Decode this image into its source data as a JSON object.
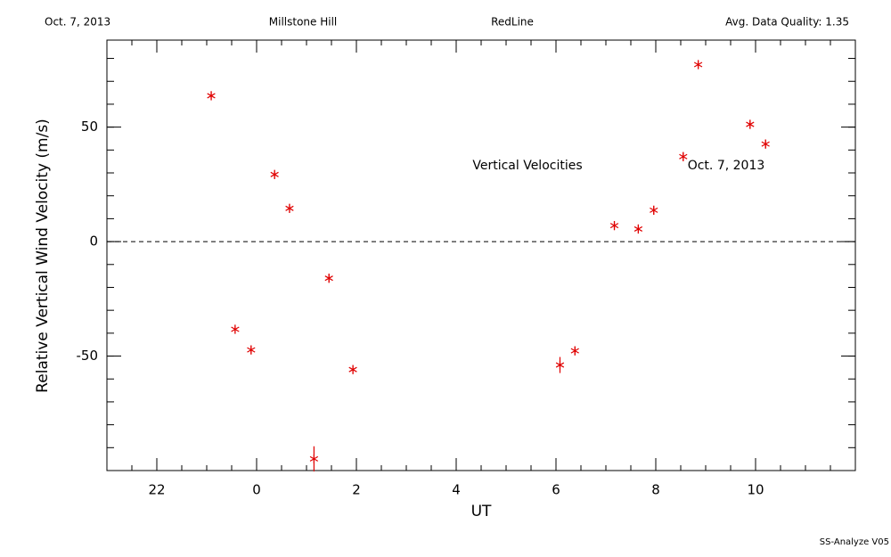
{
  "chart_data": {
    "type": "scatter",
    "header": [
      "Oct. 7, 2013",
      "Millstone Hill",
      "RedLine",
      "Avg. Data Quality: 1.35"
    ],
    "xlabel": "UT",
    "ylabel": "Relative Vertical Wind Velocity (m/s)",
    "annotations": [
      "Vertical Velocities",
      "Oct. 7, 2013"
    ],
    "footer": "SS-Analyze V05",
    "xlim": [
      -3,
      12
    ],
    "ylim": [
      -100,
      88
    ],
    "xticks": [
      {
        "value": -2,
        "label": "22"
      },
      0,
      2,
      4,
      6,
      8,
      10
    ],
    "yticks": [
      -50,
      0,
      50
    ],
    "xminor": 0.5,
    "yminor": 10,
    "zero_line": true,
    "series": [
      {
        "name": "Vertical Velocities",
        "color": "#e00000",
        "x": [
          -0.91,
          -0.43,
          -0.11,
          0.36,
          0.66,
          1.15,
          1.45,
          1.93,
          6.08,
          6.38,
          7.17,
          7.65,
          7.96,
          8.55,
          8.85,
          9.89,
          10.2
        ],
        "values": [
          63.7,
          -38.3,
          -47.3,
          29.3,
          14.5,
          -94.9,
          -16,
          -55.9,
          -53.9,
          -47.7,
          7,
          5.5,
          13.7,
          37.1,
          77.3,
          51.2,
          42.6
        ],
        "errors": [
          2,
          2,
          2,
          2,
          2,
          5.5,
          2,
          2,
          3.5,
          2,
          2,
          2,
          2,
          2,
          2,
          2,
          2
        ]
      }
    ]
  }
}
